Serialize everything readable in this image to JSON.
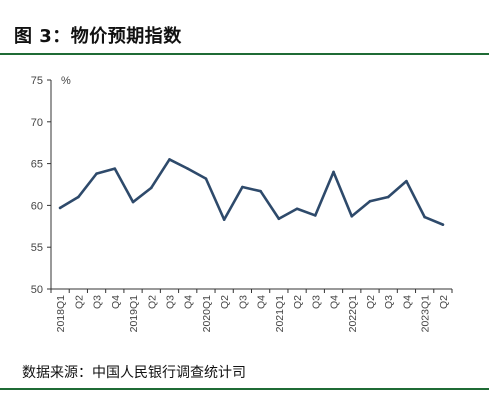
{
  "header": {
    "title": "图 3：物价预期指数"
  },
  "footer": {
    "source": "数据来源：中国人民银行调查统计司"
  },
  "colors": {
    "line": "#2e4a6b",
    "rule": "#1f6b35",
    "axis": "#333333",
    "text": "#444444"
  },
  "chart_data": {
    "type": "line",
    "title": "",
    "xlabel": "",
    "ylabel": "%",
    "ylim": [
      50,
      75
    ],
    "yticks": [
      50,
      55,
      60,
      65,
      70,
      75
    ],
    "grid": false,
    "categories": [
      "2018Q1",
      "Q2",
      "Q3",
      "Q4",
      "2019Q1",
      "Q2",
      "Q3",
      "Q4",
      "2020Q1",
      "Q2",
      "Q3",
      "Q4",
      "2021Q1",
      "Q2",
      "Q3",
      "Q4",
      "2022Q1",
      "Q2",
      "Q3",
      "Q4",
      "2023Q1",
      "Q2"
    ],
    "series": [
      {
        "name": "",
        "values": [
          59.7,
          61.0,
          63.8,
          64.4,
          60.4,
          62.1,
          65.5,
          64.4,
          63.2,
          58.3,
          62.2,
          61.7,
          58.4,
          59.6,
          58.8,
          64.0,
          58.7,
          60.5,
          61.0,
          62.9,
          58.6,
          57.7
        ]
      }
    ]
  }
}
